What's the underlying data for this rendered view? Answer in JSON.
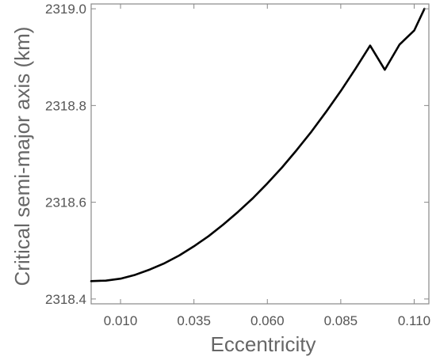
{
  "chart_data": {
    "type": "line",
    "title": "",
    "xlabel": "Eccentricity",
    "ylabel": "Critical semi-major axis (km)",
    "xlim": [
      0.0,
      0.115
    ],
    "ylim": [
      2318.39,
      2319.01
    ],
    "xticks": [
      0.01,
      0.035,
      0.06,
      0.085,
      0.11
    ],
    "xtick_labels": [
      "0.010",
      "0.035",
      "0.060",
      "0.085",
      "0.110"
    ],
    "yticks": [
      2318.4,
      2318.6,
      2318.8,
      2319.0
    ],
    "ytick_labels": [
      "2318.4",
      "2318.6",
      "2318.8",
      "2319.0"
    ],
    "grid": false,
    "legend": "none",
    "colors": {
      "line": "#000000",
      "frame": "#888888",
      "tick_text": "#555555",
      "axis_title": "#666666"
    },
    "series": [
      {
        "x": [
          0.0,
          0.005,
          0.01,
          0.015,
          0.02,
          0.025,
          0.03,
          0.035,
          0.04,
          0.045,
          0.05,
          0.055,
          0.06,
          0.065,
          0.07,
          0.075,
          0.08,
          0.085,
          0.09,
          0.095,
          0.1,
          0.105,
          0.11,
          0.1135
        ],
        "y": [
          2318.437,
          2318.438,
          2318.442,
          2318.45,
          2318.461,
          2318.474,
          2318.49,
          2318.509,
          2318.53,
          2318.554,
          2318.58,
          2318.608,
          2318.639,
          2318.672,
          2318.708,
          2318.746,
          2318.787,
          2318.83,
          2318.876,
          2318.924,
          2318.874,
          2318.926,
          2318.955,
          2319.0
        ]
      }
    ]
  }
}
